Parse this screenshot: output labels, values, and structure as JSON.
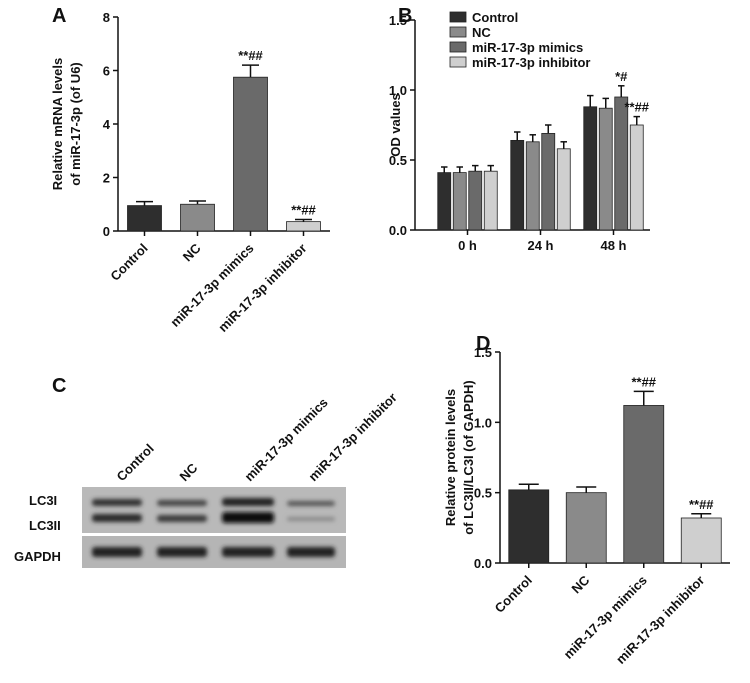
{
  "chart_data": [
    {
      "type": "bar",
      "label": "A",
      "ylabel": [
        "Relative mRNA levels",
        "of miR-17-3p (of U6)"
      ],
      "categories": [
        "Control",
        "NC",
        "miR-17-3p mimics",
        "miR-17-3p inhibitor"
      ],
      "values": [
        0.95,
        1.0,
        5.75,
        0.35
      ],
      "errors": [
        0.15,
        0.12,
        0.45,
        0.08
      ],
      "annotations": [
        null,
        null,
        "**##",
        "**##"
      ],
      "colors": [
        "#2e2e2e",
        "#8a8a8a",
        "#6a6a6a",
        "#cfcfcf"
      ],
      "ylim": [
        0,
        8
      ],
      "yticks": [
        0,
        2,
        4,
        6,
        8
      ]
    },
    {
      "type": "grouped_bar",
      "label": "B",
      "ylabel": [
        "OD values"
      ],
      "categories": [
        "0 h",
        "24 h",
        "48 h"
      ],
      "series": [
        {
          "name": "Control",
          "color": "#2e2e2e",
          "values": [
            0.41,
            0.64,
            0.88
          ],
          "errors": [
            0.04,
            0.06,
            0.08
          ],
          "annotations": [
            null,
            null,
            null
          ]
        },
        {
          "name": "NC",
          "color": "#8a8a8a",
          "values": [
            0.41,
            0.63,
            0.87
          ],
          "errors": [
            0.04,
            0.05,
            0.07
          ],
          "annotations": [
            null,
            null,
            null
          ]
        },
        {
          "name": "miR-17-3p mimics",
          "color": "#6a6a6a",
          "values": [
            0.42,
            0.69,
            0.95
          ],
          "errors": [
            0.04,
            0.06,
            0.08
          ],
          "annotations": [
            null,
            null,
            "*#"
          ]
        },
        {
          "name": "miR-17-3p inhibitor",
          "color": "#cfcfcf",
          "values": [
            0.42,
            0.58,
            0.75
          ],
          "errors": [
            0.04,
            0.05,
            0.06
          ],
          "annotations": [
            null,
            null,
            "**##"
          ]
        }
      ],
      "ylim": [
        0,
        1.5
      ],
      "yticks": [
        {
          "value": 0,
          "label": "0.0"
        },
        0.5,
        {
          "value": 1,
          "label": "1.0"
        },
        1.5
      ],
      "legend": "upper-left"
    },
    {
      "type": "bar",
      "label": "D",
      "ylabel": [
        "Relative protein levels",
        "of LC3II/LC3I (of GAPDH)"
      ],
      "categories": [
        "Control",
        "NC",
        "miR-17-3p mimics",
        "miR-17-3p inhibitor"
      ],
      "values": [
        0.52,
        0.5,
        1.12,
        0.32
      ],
      "errors": [
        0.04,
        0.04,
        0.1,
        0.03
      ],
      "annotations": [
        null,
        null,
        "**##",
        "**##"
      ],
      "colors": [
        "#2e2e2e",
        "#8a8a8a",
        "#6a6a6a",
        "#cfcfcf"
      ],
      "ylim": [
        0,
        1.5
      ],
      "yticks": [
        {
          "value": 0,
          "label": "0.0"
        },
        0.5,
        {
          "value": 1,
          "label": "1.0"
        },
        1.5
      ]
    }
  ],
  "blot": {
    "label": "C",
    "columns": [
      "Control",
      "NC",
      "miR-17-3p mimics",
      "miR-17-3p inhibitor"
    ],
    "rows": [
      "LC3I",
      "LC3II",
      "GAPDH"
    ]
  }
}
